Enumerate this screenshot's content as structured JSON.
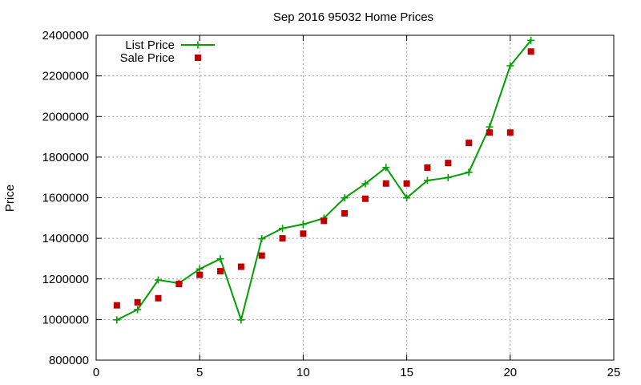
{
  "chart_data": {
    "type": "line",
    "title": "Sep 2016 95032 Home Prices",
    "xlabel": "",
    "ylabel": "Price",
    "xlim": [
      0,
      25
    ],
    "ylim": [
      800000,
      2400000
    ],
    "xticks": [
      0,
      5,
      10,
      15,
      20,
      25
    ],
    "yticks": [
      800000,
      1000000,
      1200000,
      1400000,
      1600000,
      1800000,
      2000000,
      2200000,
      2400000
    ],
    "grid": true,
    "legend_position": "top-left",
    "series": [
      {
        "name": "List Price",
        "style": "linespoints",
        "marker": "plus",
        "color": "#00a000",
        "x": [
          1,
          2,
          3,
          4,
          5,
          6,
          7,
          8,
          9,
          10,
          11,
          12,
          13,
          14,
          15,
          16,
          17,
          18,
          19,
          20,
          21
        ],
        "y": [
          998000,
          1049000,
          1195000,
          1179000,
          1249000,
          1299000,
          998000,
          1398000,
          1449000,
          1469000,
          1499000,
          1599000,
          1669000,
          1749000,
          1599000,
          1685000,
          1699000,
          1725000,
          1949000,
          2250000,
          2375000
        ]
      },
      {
        "name": "Sale Price",
        "style": "points",
        "marker": "square",
        "color": "#c00000",
        "x": [
          1,
          2,
          3,
          4,
          5,
          6,
          7,
          8,
          9,
          10,
          11,
          12,
          13,
          14,
          15,
          16,
          17,
          18,
          19,
          20,
          21
        ],
        "y": [
          1070000,
          1085000,
          1105000,
          1175000,
          1220000,
          1238000,
          1260000,
          1315000,
          1400000,
          1423000,
          1486000,
          1523000,
          1595000,
          1670000,
          1670000,
          1748000,
          1771000,
          1870000,
          1921000,
          1921000,
          2320000
        ]
      }
    ]
  }
}
